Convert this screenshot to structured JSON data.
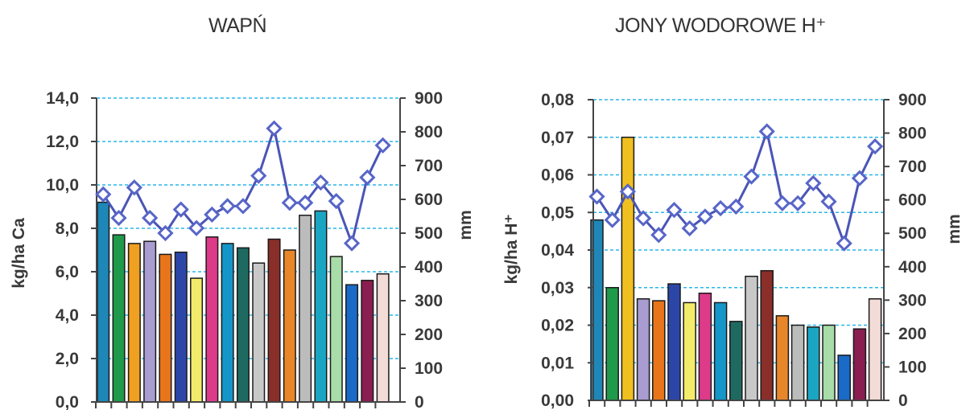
{
  "chart_data": [
    {
      "type": "bar",
      "title": "WAPŃ",
      "ylabel": "kg/ha Ca",
      "y2label": "mm",
      "ylim": [
        0,
        14
      ],
      "y2lim": [
        0,
        900
      ],
      "yticks": [
        "0,0",
        "2,0",
        "4,0",
        "6,0",
        "8,0",
        "10,0",
        "12,0",
        "14,0"
      ],
      "y2ticks": [
        "0",
        "100",
        "200",
        "300",
        "400",
        "500",
        "600",
        "700",
        "800",
        "900"
      ],
      "grid": true,
      "colors": [
        "#1f86b8",
        "#1f9a4a",
        "#f0a020",
        "#a99cd0",
        "#e8751a",
        "#2c46a8",
        "#f3ec6a",
        "#de3a8a",
        "#1496c8",
        "#1e6a60",
        "#c8c8c8",
        "#8a2e2a",
        "#e8862a",
        "#bcbcbc",
        "#1aa6c2",
        "#a8dca8",
        "#1a6ac8",
        "#8a1e50",
        "#f3dcd8"
      ],
      "values": [
        9.2,
        7.7,
        7.3,
        7.4,
        6.8,
        6.9,
        5.7,
        7.6,
        7.3,
        7.1,
        6.4,
        7.5,
        7.0,
        8.6,
        8.8,
        6.7,
        5.4,
        5.6,
        5.9
      ],
      "line_values": [
        615,
        545,
        635,
        545,
        500,
        570,
        515,
        555,
        580,
        580,
        670,
        810,
        590,
        590,
        650,
        595,
        470,
        665,
        760
      ]
    },
    {
      "type": "bar",
      "title": "JONY WODOROWE H⁺",
      "ylabel": "kg/ha H⁺",
      "y2label": "mm",
      "ylim": [
        0,
        0.08
      ],
      "y2lim": [
        0,
        900
      ],
      "yticks": [
        "0,00",
        "0,01",
        "0,02",
        "0,03",
        "0,04",
        "0,05",
        "0,06",
        "0,07",
        "0,08"
      ],
      "y2ticks": [
        "0",
        "100",
        "200",
        "300",
        "400",
        "500",
        "600",
        "700",
        "800",
        "900"
      ],
      "grid": true,
      "colors": [
        "#1f86b8",
        "#1f9a4a",
        "#f0c020",
        "#a99cd0",
        "#e8751a",
        "#2c46a8",
        "#f3ec6a",
        "#de3a8a",
        "#1496c8",
        "#1e6a60",
        "#c8c8c8",
        "#8a2e2a",
        "#e8862a",
        "#bcbcbc",
        "#1aa6c2",
        "#a8dca8",
        "#1a6ac8",
        "#8a1e50",
        "#f3dcd8"
      ],
      "values": [
        0.048,
        0.03,
        0.07,
        0.027,
        0.0265,
        0.031,
        0.026,
        0.0285,
        0.026,
        0.021,
        0.033,
        0.0345,
        0.0225,
        0.02,
        0.0195,
        0.02,
        0.012,
        0.019,
        0.027
      ],
      "line_values": [
        610,
        540,
        625,
        545,
        495,
        570,
        515,
        550,
        575,
        580,
        670,
        805,
        590,
        590,
        650,
        595,
        470,
        665,
        760
      ]
    }
  ]
}
